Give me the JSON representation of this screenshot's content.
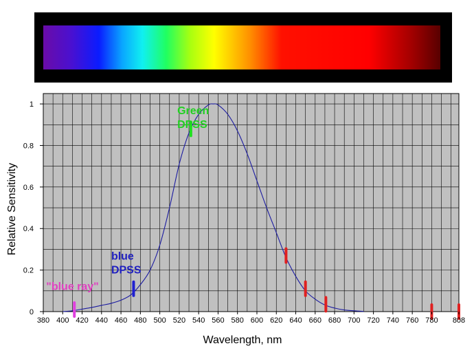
{
  "spectrum": {
    "stops": [
      {
        "pos": 0.0,
        "color": "#6a0ca8"
      },
      {
        "pos": 0.07,
        "color": "#4a10d0"
      },
      {
        "pos": 0.14,
        "color": "#0a1cff"
      },
      {
        "pos": 0.2,
        "color": "#0aa8ff"
      },
      {
        "pos": 0.25,
        "color": "#10f0f0"
      },
      {
        "pos": 0.31,
        "color": "#20ff60"
      },
      {
        "pos": 0.37,
        "color": "#a8ff10"
      },
      {
        "pos": 0.43,
        "color": "#ffff00"
      },
      {
        "pos": 0.52,
        "color": "#ff9000"
      },
      {
        "pos": 0.6,
        "color": "#ff1000"
      },
      {
        "pos": 0.82,
        "color": "#ff0000"
      },
      {
        "pos": 0.93,
        "color": "#a00000"
      },
      {
        "pos": 1.0,
        "color": "#580000"
      }
    ]
  },
  "chart_data": {
    "type": "line",
    "title": "",
    "xlabel": "Wavelength, nm",
    "ylabel": "Relative Sensitivity",
    "xlim": [
      380,
      808
    ],
    "ylim": [
      0,
      1.05
    ],
    "x_ticks": [
      380,
      400,
      420,
      440,
      460,
      480,
      500,
      520,
      540,
      560,
      580,
      600,
      620,
      640,
      660,
      680,
      700,
      720,
      740,
      760,
      780,
      808
    ],
    "x_tick_labels": [
      "380",
      "400",
      "420",
      "440",
      "460",
      "480",
      "500",
      "520",
      "540",
      "560",
      "580",
      "600",
      "620",
      "640",
      "660",
      "680",
      "700",
      "720",
      "740",
      "760",
      "780",
      "808"
    ],
    "y_ticks": [
      0,
      0.2,
      0.4,
      0.6,
      0.8,
      1
    ],
    "y_tick_labels": [
      "0",
      "0.2",
      "0.4",
      "0.6",
      "0.8",
      "1"
    ],
    "grid": true,
    "plot_background": "#c0c0c0",
    "line_color": "#1a1aa0",
    "series": [
      {
        "x": [
          400,
          410,
          420,
          430,
          440,
          450,
          460,
          470,
          480,
          490,
          500,
          510,
          520,
          530,
          540,
          550,
          555,
          560,
          570,
          580,
          590,
          600,
          610,
          620,
          630,
          640,
          650,
          660,
          670,
          680,
          690,
          700,
          710
        ],
        "y": [
          0.0,
          0.004,
          0.012,
          0.02,
          0.03,
          0.04,
          0.055,
          0.08,
          0.13,
          0.2,
          0.32,
          0.5,
          0.71,
          0.86,
          0.95,
          0.995,
          1.0,
          0.995,
          0.95,
          0.87,
          0.76,
          0.63,
          0.5,
          0.38,
          0.26,
          0.17,
          0.1,
          0.06,
          0.032,
          0.017,
          0.008,
          0.004,
          0.001
        ]
      }
    ],
    "markers": [
      {
        "x": 412,
        "y": 0.01,
        "color": "#e040e0"
      },
      {
        "x": 473,
        "y": 0.11,
        "color": "#2020d0"
      },
      {
        "x": 532,
        "y": 0.88,
        "color": "#20e020"
      },
      {
        "x": 630,
        "y": 0.27,
        "color": "#e02020"
      },
      {
        "x": 650,
        "y": 0.11,
        "color": "#e02020"
      },
      {
        "x": 671,
        "y": 0.035,
        "color": "#e02020"
      },
      {
        "x": 780,
        "y": 0.0,
        "color": "#e02020"
      },
      {
        "x": 808,
        "y": 0.0,
        "color": "#e02020"
      }
    ],
    "annotations": [
      {
        "lines": [
          "\"blue ray\""
        ],
        "color": "#e040c0",
        "x": 383,
        "y": 0.105
      },
      {
        "lines": [
          "blue",
          "DPSS"
        ],
        "color": "#2020c0",
        "x": 450,
        "y": 0.25
      },
      {
        "lines": [
          "Green",
          "DPSS"
        ],
        "color": "#20d020",
        "x": 518,
        "y": 0.95
      }
    ]
  }
}
